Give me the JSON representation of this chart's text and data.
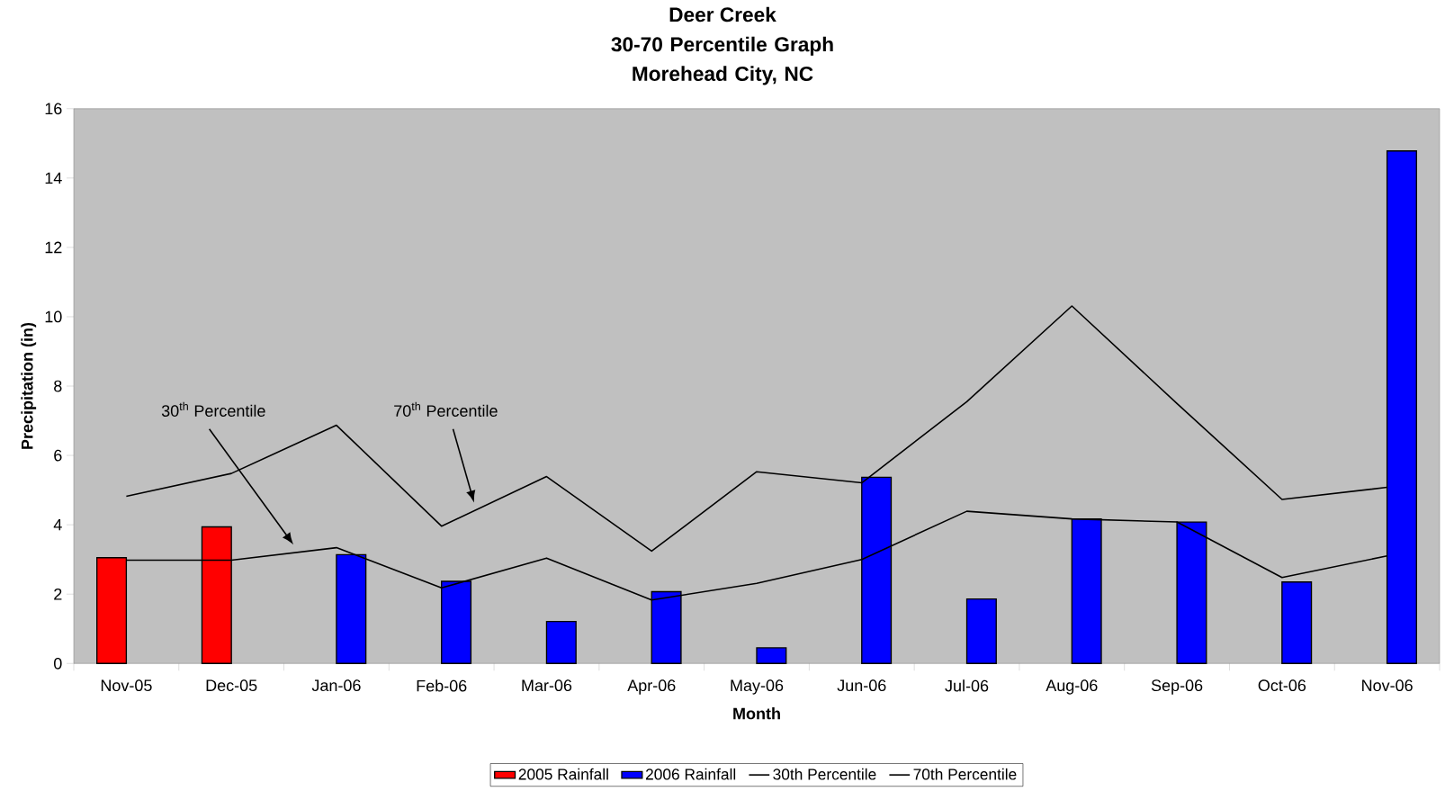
{
  "chart_data": {
    "type": "bar",
    "title": "Deer Creek",
    "subtitle": "30-70 Percentile Graph Morehead City, NC",
    "xlabel": "Month",
    "ylabel": "Precipitation (in)",
    "categories": [
      "Nov-05",
      "Dec-05",
      "Jan-06",
      "Feb-06",
      "Mar-06",
      "Apr-06",
      "May-06",
      "Jun-06",
      "Jul-06",
      "Aug-06",
      "Sep-06",
      "Oct-06",
      "Nov-06"
    ],
    "series": [
      {
        "name": "2005 Rainfall",
        "color": "#ff0000",
        "values": [
          3.05,
          3.94,
          null,
          null,
          null,
          null,
          null,
          null,
          null,
          null,
          null,
          null,
          null
        ]
      },
      {
        "name": "2006 Rainfall",
        "color": "#0000ff",
        "values": [
          null,
          null,
          3.14,
          2.37,
          1.21,
          2.07,
          0.45,
          5.37,
          1.86,
          4.17,
          4.08,
          2.35,
          14.78
        ]
      },
      {
        "name": "30th Percentile",
        "type": "line",
        "color": "#000000",
        "values": [
          2.98,
          2.98,
          3.34,
          2.18,
          3.04,
          1.83,
          2.31,
          3.0,
          4.39,
          4.17,
          4.08,
          2.48,
          3.1
        ]
      },
      {
        "name": "70th Percentile",
        "type": "line",
        "color": "#000000",
        "values": [
          4.82,
          5.48,
          6.87,
          3.96,
          5.39,
          3.24,
          5.53,
          5.21,
          7.55,
          10.31,
          7.5,
          4.73,
          5.08
        ]
      }
    ],
    "annotations": [
      "30$^{th}$ Percentile",
      "70$^{th}$ Percentile"
    ],
    "ylim": [
      0,
      16
    ],
    "yticks": [
      0,
      2,
      4,
      6,
      8,
      10,
      12,
      14,
      16
    ],
    "grid": false,
    "legend": "bottom",
    "marker": "none",
    "line_style": "solid"
  }
}
